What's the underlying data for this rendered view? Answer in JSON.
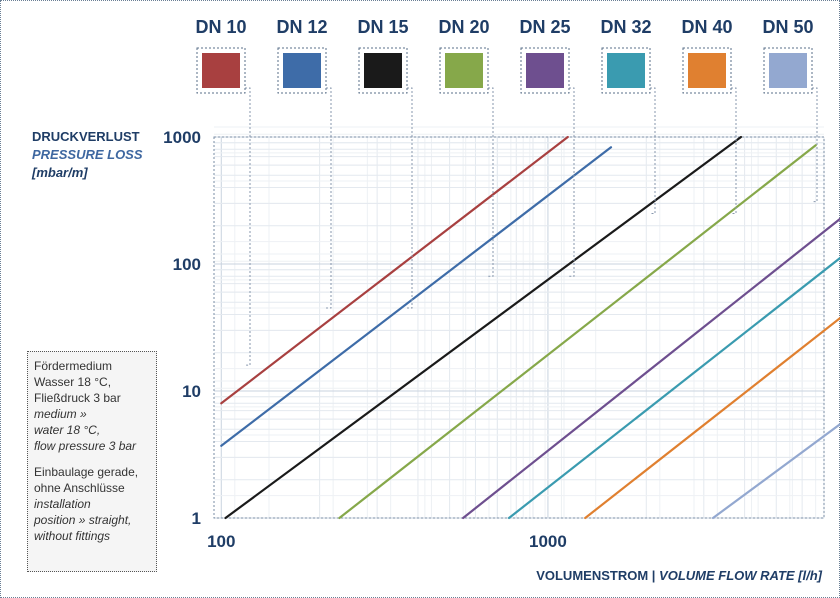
{
  "chart_data": {
    "type": "line",
    "x_scale": "log",
    "y_scale": "log",
    "xlim": [
      95,
      7000
    ],
    "ylim": [
      1,
      1000
    ],
    "x_ticks": [
      "100",
      "1000",
      "10000"
    ],
    "y_ticks": [
      "1",
      "10",
      "100",
      "1000"
    ],
    "grid": true,
    "ylabel_lines": [
      "DRUCKVERLUST",
      "PRESSURE LOSS",
      "[mbar/m]"
    ],
    "xlabel_de": "VOLUMENSTROM",
    "xlabel_sep": " | ",
    "xlabel_en": "VOLUME FLOW RATE [l/h]",
    "series": [
      {
        "name": "DN 10",
        "color": "#a84040",
        "x": [
          100,
          1150
        ],
        "y": [
          8,
          1000
        ]
      },
      {
        "name": "DN 12",
        "color": "#3e6ca8",
        "x": [
          100,
          1560
        ],
        "y": [
          3.7,
          830
        ]
      },
      {
        "name": "DN 15",
        "color": "#1a1a1a",
        "x": [
          103,
          3900
        ],
        "y": [
          1,
          1000
        ]
      },
      {
        "name": "DN 20",
        "color": "#86a84a",
        "x": [
          230,
          6600
        ],
        "y": [
          1,
          860
        ]
      },
      {
        "name": "DN 25",
        "color": "#6e4f8f",
        "x": [
          550,
          14000
        ],
        "y": [
          1,
          740
        ]
      },
      {
        "name": "DN 32",
        "color": "#3a9bb0",
        "x": [
          760,
          19600
        ],
        "y": [
          1,
          710
        ]
      },
      {
        "name": "DN 40",
        "color": "#e08030",
        "x": [
          1300,
          29400
        ],
        "y": [
          1,
          540
        ]
      },
      {
        "name": "DN 50",
        "color": "#93a8d0",
        "x": [
          3200,
          68000
        ],
        "y": [
          1,
          330
        ]
      }
    ],
    "swatch_pointers_y": [
      16,
      45,
      45,
      80,
      80,
      250,
      250,
      310
    ]
  },
  "notes": {
    "l1": "Fördermedium",
    "l2": "Wasser 18 °C,",
    "l3": "Fließdruck 3 bar",
    "l4": "medium »",
    "l5": "water 18 °C,",
    "l6": "flow pressure 3 bar",
    "l7": "Einbaulage gerade,",
    "l8": "ohne Anschlüsse",
    "l9": "installation",
    "l10": "position » straight,",
    "l11": "without fittings"
  }
}
